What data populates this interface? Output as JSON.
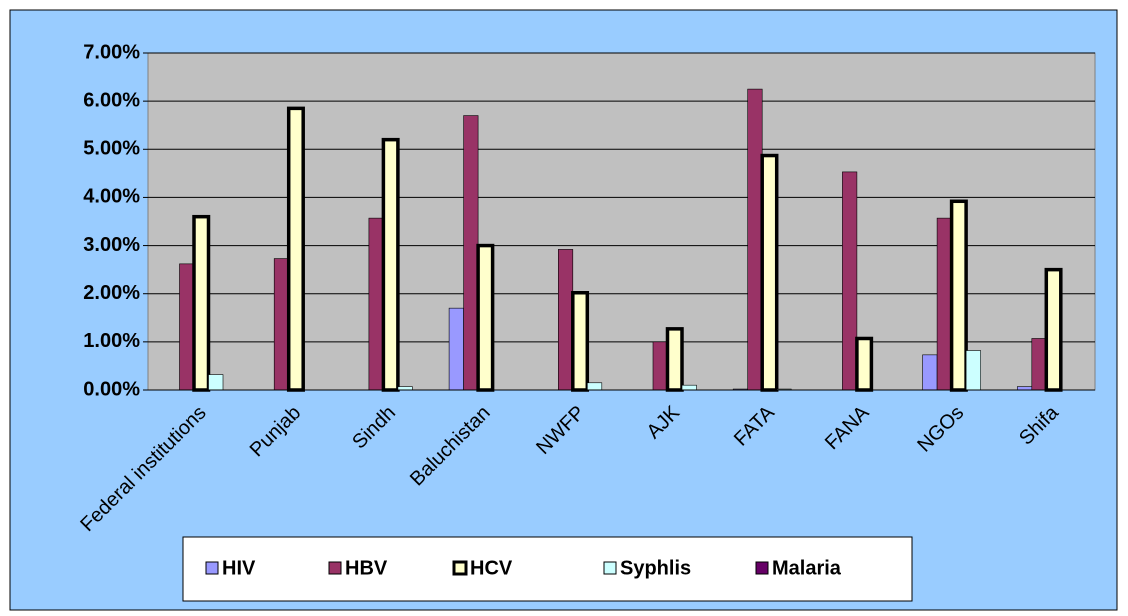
{
  "chart_data": {
    "type": "bar",
    "categories": [
      "Federal institutions",
      "Punjab",
      "Sindh",
      "Baluchistan",
      "NWFP",
      "AJK",
      "FATA",
      "FANA",
      "NGOs",
      "Shifa"
    ],
    "series": [
      {
        "name": "HIV",
        "color": "#9999ff",
        "values": [
          0,
          0,
          0,
          1.7,
          0,
          0,
          0.02,
          0,
          0.73,
          0.07
        ]
      },
      {
        "name": "HBV",
        "color": "#993366",
        "values": [
          2.62,
          2.73,
          3.57,
          5.7,
          2.92,
          1.0,
          6.25,
          4.53,
          3.57,
          1.07
        ]
      },
      {
        "name": "HCV",
        "color": "#ffffcc",
        "values": [
          3.6,
          5.85,
          5.2,
          3.0,
          2.02,
          1.27,
          4.87,
          1.07,
          3.92,
          2.5
        ]
      },
      {
        "name": "Syphlis",
        "color": "#ccffff",
        "values": [
          0.32,
          0,
          0.07,
          0,
          0.15,
          0.1,
          0.02,
          0,
          0.82,
          0
        ]
      },
      {
        "name": "Malaria",
        "color": "#660066",
        "values": [
          0,
          0,
          0,
          0,
          0,
          0,
          0,
          0,
          0,
          0
        ]
      }
    ],
    "ylim": [
      0,
      7
    ],
    "yticks": [
      {
        "value": 0,
        "label": "0.00%"
      },
      {
        "value": 1,
        "label": "1.00%"
      },
      {
        "value": 2,
        "label": "2.00%"
      },
      {
        "value": 3,
        "label": "3.00%"
      },
      {
        "value": 4,
        "label": "4.00%"
      },
      {
        "value": 5,
        "label": "5.00%"
      },
      {
        "value": 6,
        "label": "6.00%"
      },
      {
        "value": 7,
        "label": "7.00%"
      }
    ],
    "grid": true,
    "legend": "bottom"
  }
}
